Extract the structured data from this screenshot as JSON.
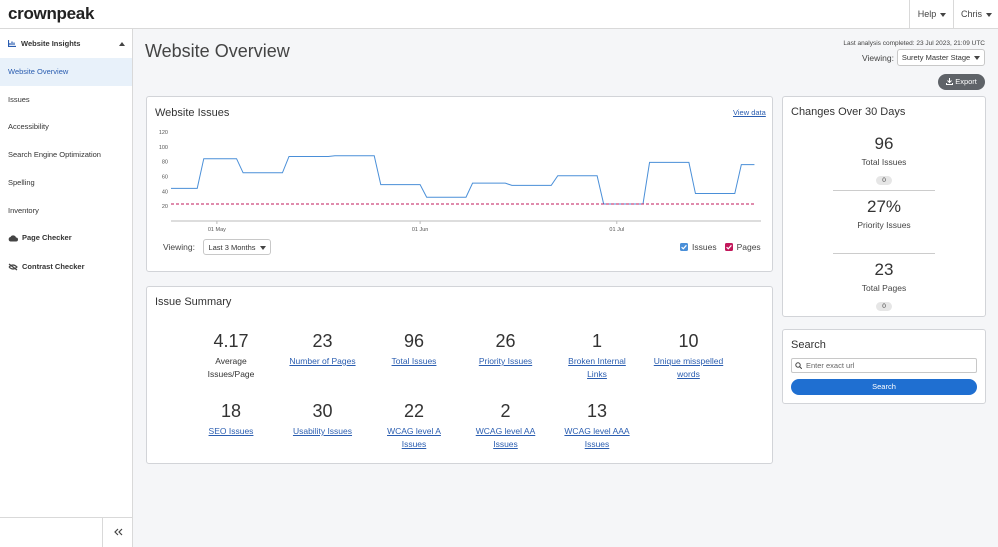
{
  "header": {
    "logo": "crownpeak",
    "help": "Help",
    "user": "Chris"
  },
  "sidebar": {
    "section": "Website Insights",
    "items": [
      "Website Overview",
      "Issues",
      "Accessibility",
      "Search Engine Optimization",
      "Spelling",
      "Inventory"
    ],
    "tools": [
      "Page Checker",
      "Contrast Checker"
    ]
  },
  "page": {
    "title": "Website Overview",
    "last_analysis": "Last analysis completed: 23 Jul 2023, 21:09 UTC",
    "viewing_label": "Viewing:",
    "viewing_value": "Surety Master Stage",
    "export": "Export"
  },
  "issues_card": {
    "view_data": "View data",
    "viewing_label": "Viewing:",
    "range": "Last 3 Months"
  },
  "chart_data": {
    "type": "line",
    "title": "Website Issues",
    "x": [
      "24 Apr",
      "28 Apr",
      "29 Apr",
      "4 May",
      "5 May",
      "11 May",
      "12 May",
      "18 May",
      "19 May",
      "25 May",
      "26 May",
      "1 Jun",
      "2 Jun",
      "8 Jun",
      "9 Jun",
      "14 Jun",
      "15 Jun",
      "21 Jun",
      "22 Jun",
      "28 Jun",
      "29 Jun",
      "5 Jul",
      "6 Jul",
      "12 Jul",
      "13 Jul",
      "19 Jul",
      "20 Jul",
      "22 Jul"
    ],
    "series": [
      {
        "name": "Issues",
        "color": "#4a8fd8",
        "style": "solid",
        "values": [
          44,
          44,
          84,
          84,
          65,
          65,
          87,
          87,
          88,
          88,
          49,
          49,
          32,
          32,
          51,
          51,
          48,
          48,
          61,
          61,
          23,
          23,
          79,
          79,
          37,
          37,
          76,
          76
        ]
      },
      {
        "name": "Pages",
        "color": "#c2185b",
        "style": "dashed",
        "values": [
          23,
          23,
          23,
          23,
          23,
          23,
          23,
          23,
          23,
          23,
          23,
          23,
          23,
          23,
          23,
          23,
          23,
          23,
          23,
          23,
          23,
          23,
          23,
          23,
          23,
          23,
          23,
          23
        ]
      }
    ],
    "xlim": [
      "24 Apr",
      "23 Jul"
    ],
    "xticks": [
      "01 May",
      "01 Jun",
      "01 Jul"
    ],
    "ylim": [
      0,
      120
    ],
    "yticks": [
      20,
      40,
      60,
      80,
      100,
      120
    ],
    "grid": false
  },
  "summary": {
    "title": "Issue Summary",
    "stats": [
      {
        "value": 4.17,
        "label": "Average Issues/Page"
      },
      {
        "value": 23,
        "label": "Number of Pages"
      },
      {
        "value": 96,
        "label": "Total Issues"
      },
      {
        "value": 26,
        "label": "Priority Issues"
      },
      {
        "value": 1,
        "label": "Broken Internal Links"
      },
      {
        "value": 10,
        "label": "Unique misspelled words"
      },
      {
        "value": 18,
        "label": "SEO Issues"
      },
      {
        "value": 30,
        "label": "Usability Issues"
      },
      {
        "value": 22,
        "label": "WCAG level A Issues"
      },
      {
        "value": 2,
        "label": "WCAG level AA Issues"
      },
      {
        "value": 13,
        "label": "WCAG level AAA Issues"
      }
    ]
  },
  "changes": {
    "title": "Changes Over 30 Days",
    "stats": [
      {
        "value": 96,
        "label": "Total Issues",
        "change": 0
      },
      {
        "value": "27%",
        "label": "Priority Issues"
      },
      {
        "value": 23,
        "label": "Total Pages",
        "change": 0
      }
    ]
  },
  "search": {
    "title": "Search",
    "placeholder": "Enter exact url",
    "button": "Search"
  }
}
